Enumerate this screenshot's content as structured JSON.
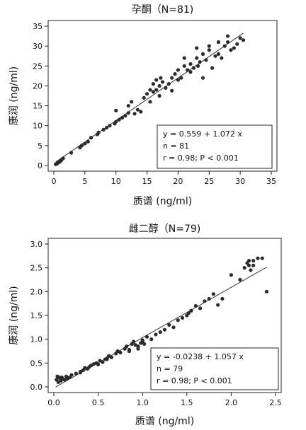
{
  "chart_data": [
    {
      "type": "scatter",
      "title": "孕酮（N=81)",
      "xlabel": "质谱 (ng/ml)",
      "ylabel": "康润 (ng/ml)",
      "xlim": [
        0,
        35
      ],
      "ylim": [
        0,
        35
      ],
      "xticks": [
        0,
        5,
        10,
        15,
        20,
        25,
        30,
        35
      ],
      "yticks": [
        0,
        5,
        10,
        15,
        20,
        25,
        30,
        35
      ],
      "ytick_labels": [
        "0",
        "5",
        "10",
        "15",
        "20",
        "25",
        "30",
        "35"
      ],
      "xtick_labels": [
        "0",
        "5",
        "10",
        "15",
        "20",
        "25",
        "30",
        "35"
      ],
      "regression": {
        "intercept": 0.559,
        "slope": 1.072,
        "x_range": [
          0.3,
          30.5
        ]
      },
      "stats": [
        "y = 0.559 + 1.072 x",
        "n = 81",
        "r = 0.98; P < 0.001"
      ],
      "x": [
        0.3,
        0.4,
        0.5,
        0.6,
        0.7,
        0.8,
        0.9,
        1.0,
        1.2,
        1.5,
        2.8,
        4.2,
        4.5,
        5.0,
        5.5,
        6.0,
        7.0,
        7.2,
        8.0,
        8.5,
        9.0,
        9.8,
        10.0,
        10.5,
        10.0,
        11.0,
        11.5,
        12.0,
        12.0,
        12.5,
        13.0,
        13.5,
        14.0,
        14.5,
        15.0,
        15.5,
        16.0,
        16.0,
        16.5,
        16.5,
        17.0,
        17.2,
        17.5,
        18.0,
        18.5,
        19.0,
        19.5,
        20.0,
        20.0,
        20.5,
        21.0,
        21.5,
        22.0,
        22.0,
        22.5,
        23.0,
        23.2,
        23.5,
        24.0,
        24.0,
        24.5,
        25.0,
        25.5,
        26.0,
        26.5,
        27.0,
        27.5,
        28.0,
        28.5,
        29.0,
        29.5,
        30.0,
        30.5,
        28.0,
        26.5,
        25.0,
        23.0,
        21.0,
        19.0,
        17.0,
        15.5
      ],
      "y": [
        0.3,
        0.4,
        0.5,
        0.6,
        0.7,
        0.8,
        0.9,
        1.0,
        1.3,
        1.8,
        3.2,
        4.5,
        5.0,
        5.5,
        6.0,
        7.0,
        7.8,
        8.3,
        9.0,
        9.5,
        10.0,
        10.5,
        11.0,
        11.5,
        13.8,
        12.0,
        12.5,
        13.2,
        15.0,
        16.0,
        13.0,
        14.0,
        13.5,
        17.0,
        18.0,
        19.0,
        18.5,
        20.5,
        21.5,
        19.0,
        20.0,
        22.0,
        21.0,
        19.5,
        20.5,
        22.0,
        23.0,
        21.5,
        24.0,
        22.0,
        25.0,
        24.0,
        23.5,
        25.5,
        24.5,
        27.0,
        25.0,
        26.0,
        28.0,
        22.0,
        26.5,
        29.0,
        24.5,
        27.5,
        28.0,
        27.0,
        30.0,
        31.0,
        29.0,
        29.5,
        30.5,
        32.0,
        31.5,
        32.5,
        31.0,
        30.0,
        29.5,
        27.0,
        18.8,
        17.5,
        16.0
      ]
    },
    {
      "type": "scatter",
      "title": "雌二醇（N=79)",
      "xlabel": "质谱 (ng/ml)",
      "ylabel": "康润 (ng/ml)",
      "xlim": [
        0,
        2.5
      ],
      "ylim": [
        0,
        3.0
      ],
      "xticks": [
        0.0,
        0.5,
        1.0,
        1.5,
        2.0,
        2.5
      ],
      "yticks": [
        0.0,
        0.5,
        1.0,
        1.5,
        2.0,
        2.5,
        3.0
      ],
      "xtick_labels": [
        "0.0",
        "0.5",
        "1.0",
        "1.5",
        "2.0",
        "2.5"
      ],
      "ytick_labels": [
        "0.0",
        "0.5",
        "1.0",
        "1.5",
        "2.0",
        "2.5",
        "3.0"
      ],
      "regression": {
        "intercept": -0.0238,
        "slope": 1.057,
        "x_range": [
          0.02,
          2.4
        ]
      },
      "stats": [
        "y = -0.0238 + 1.057 x",
        "n = 79",
        "r = 0.98; P < 0.001"
      ],
      "x": [
        0.03,
        0.04,
        0.05,
        0.06,
        0.07,
        0.08,
        0.09,
        0.1,
        0.12,
        0.14,
        0.16,
        0.18,
        0.2,
        0.25,
        0.3,
        0.33,
        0.35,
        0.38,
        0.4,
        0.42,
        0.45,
        0.48,
        0.5,
        0.52,
        0.55,
        0.58,
        0.6,
        0.62,
        0.65,
        0.7,
        0.72,
        0.75,
        0.8,
        0.82,
        0.85,
        0.88,
        0.9,
        0.92,
        0.95,
        0.98,
        1.0,
        1.02,
        1.05,
        1.1,
        1.15,
        1.2,
        1.25,
        1.3,
        1.35,
        1.4,
        1.45,
        1.5,
        1.52,
        1.55,
        1.6,
        1.65,
        1.7,
        1.75,
        1.8,
        1.85,
        1.9,
        2.0,
        2.1,
        2.15,
        2.18,
        2.2,
        2.22,
        2.25,
        2.3,
        2.35,
        2.4,
        2.2,
        2.25,
        1.0,
        0.95,
        0.85,
        0.6,
        0.3,
        0.15
      ],
      "y": [
        0.15,
        0.22,
        0.1,
        0.2,
        0.18,
        0.13,
        0.2,
        0.17,
        0.15,
        0.22,
        0.18,
        0.2,
        0.25,
        0.28,
        0.3,
        0.35,
        0.4,
        0.38,
        0.42,
        0.45,
        0.48,
        0.5,
        0.47,
        0.55,
        0.52,
        0.58,
        0.6,
        0.65,
        0.62,
        0.7,
        0.75,
        0.72,
        0.8,
        0.85,
        0.78,
        0.9,
        0.95,
        0.88,
        0.85,
        0.92,
        0.98,
        0.9,
        1.05,
        1.0,
        1.1,
        1.15,
        1.2,
        1.3,
        1.25,
        1.4,
        1.45,
        1.5,
        1.55,
        1.6,
        1.7,
        1.65,
        1.8,
        1.85,
        1.95,
        1.72,
        1.85,
        2.35,
        2.25,
        2.5,
        2.6,
        2.55,
        2.45,
        2.65,
        2.7,
        2.7,
        2.0,
        2.65,
        2.55,
        0.95,
        0.8,
        0.75,
        0.58,
        0.32,
        0.17
      ]
    }
  ]
}
